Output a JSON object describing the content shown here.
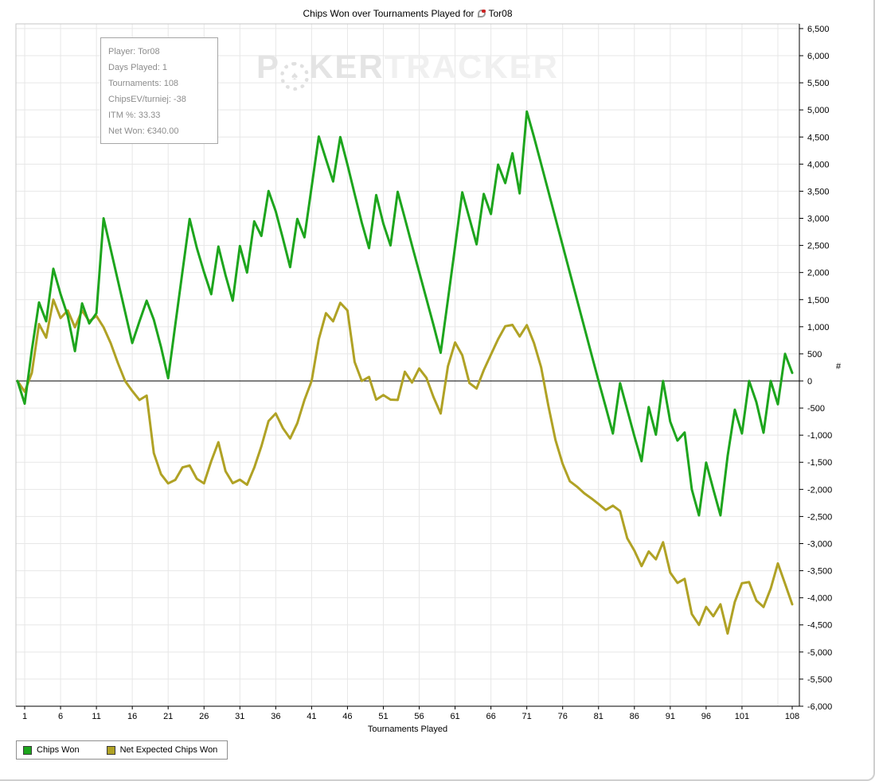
{
  "title": {
    "text": "Chips Won over Tournaments Played for",
    "player": "Tor08"
  },
  "info_box": {
    "lines": [
      "Player: Tor08",
      "Days Played: 1",
      "Tournaments: 108",
      "ChipsEV/turniej: -38",
      "ITM %: 33.33",
      "Net Won: €340.00"
    ]
  },
  "watermark": {
    "p": "P",
    "ker": "KER",
    "tracker": "TRACKER"
  },
  "legend": {
    "items": [
      {
        "label": "Chips Won",
        "color": "#1da51d"
      },
      {
        "label": "Net Expected Chips Won",
        "color": "#b0a225"
      }
    ]
  },
  "axes": {
    "y_title": "#",
    "x_title": "Tournaments Played"
  },
  "chart_data": {
    "type": "line",
    "title": "Chips Won over Tournaments Played for Tor08",
    "xlabel": "Tournaments Played",
    "ylabel": "#",
    "ylim": [
      -6000,
      6500
    ],
    "y_step": 500,
    "x_start": 0,
    "x_ticks": [
      1,
      6,
      11,
      16,
      21,
      26,
      31,
      36,
      41,
      46,
      51,
      56,
      61,
      66,
      71,
      76,
      81,
      86,
      91,
      96,
      101,
      108
    ],
    "x_grid": [
      1,
      6,
      11,
      16,
      21,
      26,
      31,
      36,
      41,
      46,
      51,
      56,
      61,
      66,
      71,
      76,
      81,
      86,
      91,
      96,
      101,
      106
    ],
    "grid": true,
    "legend_position": "bottom-left",
    "series": [
      {
        "name": "Chips Won",
        "color": "#1da51d",
        "values": [
          0,
          -420,
          570,
          1450,
          1100,
          2070,
          1600,
          1200,
          550,
          1430,
          1060,
          1250,
          3000,
          2425,
          1850,
          1275,
          700,
          1100,
          1480,
          1130,
          630,
          50,
          1040,
          2020,
          2990,
          2455,
          2010,
          1600,
          2480,
          1950,
          1480,
          2490,
          2000,
          2945,
          2675,
          3505,
          3130,
          2630,
          2100,
          2990,
          2650,
          3580,
          4510,
          4090,
          3680,
          4500,
          3990,
          3450,
          2920,
          2450,
          3430,
          2900,
          2500,
          3490,
          3000,
          2500,
          2010,
          1520,
          1030,
          520,
          1500,
          2480,
          3480,
          3000,
          2520,
          3450,
          3080,
          3990,
          3650,
          4200,
          3460,
          4970,
          4500,
          4000,
          3500,
          3000,
          2500,
          2000,
          1500,
          1000,
          500,
          0,
          -480,
          -970,
          -40,
          -530,
          -1020,
          -1480,
          -480,
          -990,
          0,
          -750,
          -1100,
          -950,
          -2000,
          -2480,
          -1505,
          -2000,
          -2480,
          -1385,
          -530,
          -970,
          0,
          -390,
          -955,
          0,
          -430,
          500,
          150
        ]
      },
      {
        "name": "Net Expected Chips Won",
        "color": "#b0a225",
        "values": [
          0,
          -200,
          150,
          1050,
          800,
          1500,
          1160,
          1300,
          990,
          1300,
          1100,
          1200,
          990,
          695,
          330,
          0,
          -185,
          -350,
          -270,
          -1330,
          -1720,
          -1890,
          -1825,
          -1595,
          -1560,
          -1805,
          -1890,
          -1480,
          -1130,
          -1665,
          -1885,
          -1820,
          -1915,
          -1600,
          -1205,
          -740,
          -600,
          -870,
          -1060,
          -780,
          -350,
          0,
          770,
          1250,
          1100,
          1440,
          1300,
          350,
          0,
          75,
          -345,
          -260,
          -345,
          -350,
          170,
          -30,
          230,
          60,
          -300,
          -600,
          270,
          710,
          475,
          -40,
          -140,
          200,
          485,
          770,
          1010,
          1035,
          820,
          1030,
          700,
          250,
          -455,
          -1090,
          -1530,
          -1850,
          -1950,
          -2070,
          -2165,
          -2270,
          -2380,
          -2300,
          -2400,
          -2900,
          -3130,
          -3415,
          -3145,
          -3290,
          -2975,
          -3535,
          -3725,
          -3650,
          -4300,
          -4500,
          -4170,
          -4340,
          -4120,
          -4660,
          -4075,
          -3730,
          -3710,
          -4050,
          -4170,
          -3830,
          -3365,
          -3740,
          -4120
        ]
      }
    ]
  }
}
